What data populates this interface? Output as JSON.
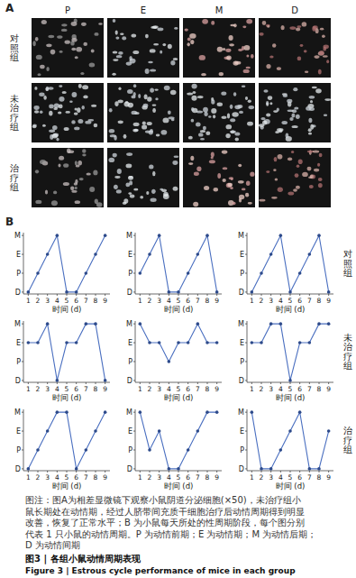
{
  "panel_a": {
    "label": "A",
    "columns": [
      "P",
      "E",
      "M",
      "D"
    ],
    "rows": [
      "对照组",
      "未治疗组",
      "治疗组"
    ]
  },
  "panel_b": {
    "label": "B",
    "groups": [
      "对照组",
      "未治疗组",
      "治疗组"
    ]
  },
  "chart_data": [
    {
      "type": "line",
      "xlabel": "时间 (d)",
      "x": [
        1,
        2,
        3,
        4,
        5,
        6,
        7,
        8,
        9
      ],
      "xlim": [
        0.5,
        9.5
      ],
      "xticks": [
        1,
        2,
        3,
        4,
        5,
        6,
        7,
        8,
        9
      ],
      "ylim": [
        -0.1,
        3.15
      ],
      "yticks": [
        {
          "value": 0,
          "label": "D"
        },
        {
          "value": 1,
          "label": "P"
        },
        {
          "value": 2,
          "label": "E"
        },
        {
          "value": 3,
          "label": "M"
        }
      ],
      "marker": "circle",
      "series": [
        {
          "color": "#4a6fc0",
          "values": [
            0,
            1,
            2,
            3,
            0,
            0,
            1,
            2,
            3
          ]
        }
      ]
    },
    {
      "type": "line",
      "xlabel": "时间 (d)",
      "x": [
        1,
        2,
        3,
        4,
        5,
        6,
        7,
        8,
        9
      ],
      "xlim": [
        0.5,
        9.5
      ],
      "xticks": [
        1,
        2,
        3,
        4,
        5,
        6,
        7,
        8,
        9
      ],
      "ylim": [
        -0.1,
        3.15
      ],
      "yticks": [
        {
          "value": 0,
          "label": "D"
        },
        {
          "value": 1,
          "label": "P"
        },
        {
          "value": 2,
          "label": "E"
        },
        {
          "value": 3,
          "label": "M"
        }
      ],
      "marker": "circle",
      "series": [
        {
          "color": "#4a6fc0",
          "values": [
            1,
            2,
            3,
            0,
            0,
            1,
            2,
            3,
            0
          ]
        }
      ]
    },
    {
      "type": "line",
      "xlabel": "时间 (d)",
      "x": [
        1,
        2,
        3,
        4,
        5,
        6,
        7,
        8,
        9
      ],
      "xlim": [
        0.5,
        9.5
      ],
      "xticks": [
        1,
        2,
        3,
        4,
        5,
        6,
        7,
        8,
        9
      ],
      "ylim": [
        -0.1,
        3.15
      ],
      "yticks": [
        {
          "value": 0,
          "label": "D"
        },
        {
          "value": 1,
          "label": "P"
        },
        {
          "value": 2,
          "label": "E"
        },
        {
          "value": 3,
          "label": "M"
        }
      ],
      "marker": "circle",
      "series": [
        {
          "color": "#4a6fc0",
          "values": [
            0,
            1,
            2,
            3,
            0,
            1,
            2,
            3,
            0
          ]
        }
      ]
    },
    {
      "type": "line",
      "xlabel": "时间 (d)",
      "x": [
        1,
        2,
        3,
        4,
        5,
        6,
        7,
        8,
        9
      ],
      "xlim": [
        0.5,
        9.5
      ],
      "xticks": [
        1,
        2,
        3,
        4,
        5,
        6,
        7,
        8,
        9
      ],
      "ylim": [
        -0.1,
        3.15
      ],
      "yticks": [
        {
          "value": 0,
          "label": "D"
        },
        {
          "value": 1,
          "label": "P"
        },
        {
          "value": 2,
          "label": "E"
        },
        {
          "value": 3,
          "label": "M"
        }
      ],
      "marker": "circle",
      "series": [
        {
          "color": "#4a6fc0",
          "values": [
            2,
            2,
            3,
            0,
            2,
            2,
            3,
            3,
            0
          ]
        }
      ]
    },
    {
      "type": "line",
      "xlabel": "时间 (d)",
      "x": [
        1,
        2,
        3,
        4,
        5,
        6,
        7,
        8,
        9
      ],
      "xlim": [
        0.5,
        9.5
      ],
      "xticks": [
        1,
        2,
        3,
        4,
        5,
        6,
        7,
        8,
        9
      ],
      "ylim": [
        -0.1,
        3.15
      ],
      "yticks": [
        {
          "value": 0,
          "label": "D"
        },
        {
          "value": 1,
          "label": "P"
        },
        {
          "value": 2,
          "label": "E"
        },
        {
          "value": 3,
          "label": "M"
        }
      ],
      "marker": "circle",
      "series": [
        {
          "color": "#4a6fc0",
          "values": [
            3,
            2,
            2,
            1,
            2,
            2,
            3,
            2,
            2
          ]
        }
      ]
    },
    {
      "type": "line",
      "xlabel": "时间 (d)",
      "x": [
        1,
        2,
        3,
        4,
        5,
        6,
        7,
        8,
        9
      ],
      "xlim": [
        0.5,
        9.5
      ],
      "xticks": [
        1,
        2,
        3,
        4,
        5,
        6,
        7,
        8,
        9
      ],
      "ylim": [
        -0.1,
        3.15
      ],
      "yticks": [
        {
          "value": 0,
          "label": "D"
        },
        {
          "value": 1,
          "label": "P"
        },
        {
          "value": 2,
          "label": "E"
        },
        {
          "value": 3,
          "label": "M"
        }
      ],
      "marker": "circle",
      "series": [
        {
          "color": "#4a6fc0",
          "values": [
            2,
            2,
            3,
            3,
            0,
            2,
            2,
            3,
            3
          ]
        }
      ]
    },
    {
      "type": "line",
      "xlabel": "时间 (d)",
      "x": [
        1,
        2,
        3,
        4,
        5,
        6,
        7,
        8,
        9
      ],
      "xlim": [
        0.5,
        9.5
      ],
      "xticks": [
        1,
        2,
        3,
        4,
        5,
        6,
        7,
        8,
        9
      ],
      "ylim": [
        -0.1,
        3.15
      ],
      "yticks": [
        {
          "value": 0,
          "label": "D"
        },
        {
          "value": 1,
          "label": "P"
        },
        {
          "value": 2,
          "label": "E"
        },
        {
          "value": 3,
          "label": "M"
        }
      ],
      "marker": "circle",
      "series": [
        {
          "color": "#4a6fc0",
          "values": [
            0,
            1,
            2,
            3,
            3,
            0,
            1,
            2,
            3
          ]
        }
      ]
    },
    {
      "type": "line",
      "xlabel": "时间 (d)",
      "x": [
        1,
        2,
        3,
        4,
        5,
        6,
        7,
        8,
        9
      ],
      "xlim": [
        0.5,
        9.5
      ],
      "xticks": [
        1,
        2,
        3,
        4,
        5,
        6,
        7,
        8,
        9
      ],
      "ylim": [
        -0.1,
        3.15
      ],
      "yticks": [
        {
          "value": 0,
          "label": "D"
        },
        {
          "value": 1,
          "label": "P"
        },
        {
          "value": 2,
          "label": "E"
        },
        {
          "value": 3,
          "label": "M"
        }
      ],
      "marker": "circle",
      "series": [
        {
          "color": "#4a6fc0",
          "values": [
            3,
            1,
            2,
            0,
            0,
            1,
            2,
            3,
            3
          ]
        }
      ]
    },
    {
      "type": "line",
      "xlabel": "时间 (d)",
      "x": [
        1,
        2,
        3,
        4,
        5,
        6,
        7,
        8,
        9
      ],
      "xlim": [
        0.5,
        9.5
      ],
      "xticks": [
        1,
        2,
        3,
        4,
        5,
        6,
        7,
        8,
        9
      ],
      "ylim": [
        -0.1,
        3.15
      ],
      "yticks": [
        {
          "value": 0,
          "label": "D"
        },
        {
          "value": 1,
          "label": "P"
        },
        {
          "value": 2,
          "label": "E"
        },
        {
          "value": 3,
          "label": "M"
        }
      ],
      "marker": "circle",
      "series": [
        {
          "color": "#4a6fc0",
          "values": [
            3,
            0,
            0,
            1,
            2,
            3,
            0,
            0,
            2
          ]
        }
      ]
    }
  ],
  "caption": {
    "lines": [
      "图注：图A为相差显微镜下观察小鼠阴道分泌细胞(×50)，未治疗组小",
      "鼠长期处在动情期，经过人脐带间充质干细胞治疗后动情周期得到明显",
      "改善，恢复了正常水平；B 为小鼠每天所处的性周期阶段，每个图分别",
      "代表 1 只小鼠的动情周期。P 为动情前期；E 为动情期；M 为动情后期；",
      "D 为动情间期"
    ],
    "title": "图3 | 各组小鼠动情周期表现",
    "title_en": "Figure 3 | Estrous cycle performance of mice in each group"
  }
}
